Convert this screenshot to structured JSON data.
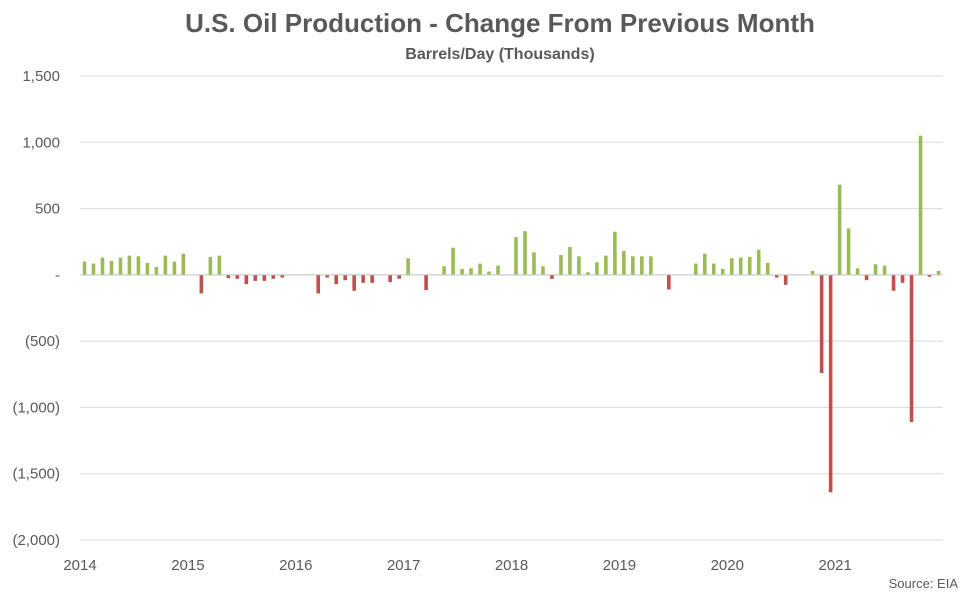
{
  "chart_data": {
    "type": "bar",
    "title": "U.S. Oil Production - Change From Previous Month",
    "subtitle": "Barrels/Day (Thousands)",
    "source": "Source: EIA",
    "ylim": [
      -2000,
      1500
    ],
    "yticks": [
      1500,
      1000,
      500,
      0,
      -500,
      -1000,
      -1500,
      -2000
    ],
    "ytick_labels": [
      "1,500",
      "1,000",
      "500",
      "-",
      "(500)",
      "(1,000)",
      "(1,500)",
      "(2,000)"
    ],
    "xticks": [
      "2014",
      "2015",
      "2016",
      "2017",
      "2018",
      "2019",
      "2020",
      "2021"
    ],
    "grid": true,
    "start": "2014-01",
    "positive_color": "#9BBB59",
    "negative_color": "#C0504D",
    "values": [
      100,
      85,
      130,
      105,
      130,
      145,
      140,
      90,
      60,
      145,
      100,
      160,
      0,
      -140,
      135,
      145,
      -25,
      -30,
      -70,
      -45,
      -45,
      -30,
      -20,
      0,
      0,
      0,
      -140,
      -20,
      -70,
      -40,
      -120,
      -60,
      -60,
      0,
      -55,
      -30,
      125,
      0,
      -115,
      0,
      65,
      205,
      45,
      50,
      85,
      25,
      70,
      0,
      285,
      330,
      170,
      65,
      -30,
      150,
      210,
      140,
      20,
      95,
      145,
      325,
      180,
      140,
      140,
      140,
      0,
      -110,
      0,
      0,
      85,
      160,
      85,
      45,
      125,
      130,
      135,
      190,
      90,
      -20,
      -75,
      0,
      0,
      30,
      -740,
      -1640,
      680,
      350,
      50,
      -40,
      80,
      70,
      -120,
      -60,
      -1110,
      1050,
      -15,
      30
    ]
  }
}
